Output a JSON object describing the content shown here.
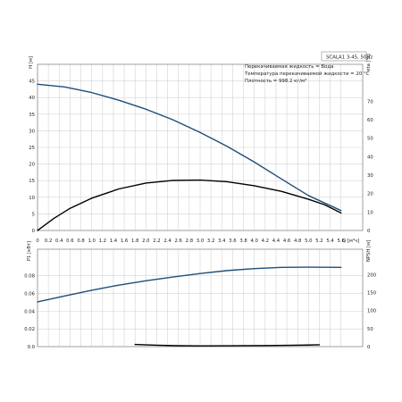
{
  "chart_data": [
    {
      "type": "line",
      "title": "SCALA1 3-45, 50Hz",
      "annotations": [
        "Перекачиваемая жидкость = Вода",
        "Температура перекачиваемой жидкости = 20 °C",
        "Плотность = 998.2 кг/м³"
      ],
      "xlabel": "Q [м³ч]",
      "xlim": [
        0,
        6.0
      ],
      "x_ticks": [
        "0",
        "0.2",
        "0.4",
        "0.6",
        "0.8",
        "1.0",
        "1.2",
        "1.4",
        "1.6",
        "1.8",
        "2.0",
        "2.2",
        "2.4",
        "2.6",
        "2.8",
        "3.0",
        "3.2",
        "3.4",
        "3.6",
        "3.8",
        "4.0",
        "4.2",
        "4.4",
        "4.6",
        "4.8",
        "5.0",
        "5.2",
        "5.4",
        "5.6"
      ],
      "ylabel_left": "H [м]",
      "ylim_left": [
        0,
        50
      ],
      "yticks_left": [
        "0",
        "5",
        "10",
        "15",
        "20",
        "25",
        "30",
        "35",
        "40",
        "45"
      ],
      "ylabel_right": "eta [%]",
      "ylim_right": [
        0,
        90
      ],
      "yticks_right": [
        "0",
        "10",
        "20",
        "30",
        "40",
        "50",
        "60",
        "70"
      ],
      "grid": true,
      "series": [
        {
          "axis": "left",
          "color": "#1f4e79",
          "x": [
            0,
            0.5,
            1.0,
            1.5,
            2.0,
            2.5,
            3.0,
            3.5,
            4.0,
            4.5,
            5.0,
            5.6
          ],
          "y": [
            44.0,
            43.2,
            41.5,
            39.2,
            36.5,
            33.3,
            29.5,
            25.3,
            20.6,
            15.5,
            10.5,
            6.0
          ]
        },
        {
          "axis": "right",
          "color": "#000000",
          "x": [
            0,
            0.3,
            0.6,
            1.0,
            1.5,
            2.0,
            2.5,
            3.0,
            3.5,
            4.0,
            4.5,
            5.0,
            5.3,
            5.6
          ],
          "y": [
            0,
            6.5,
            12.0,
            17.5,
            22.5,
            25.7,
            27.1,
            27.3,
            26.4,
            24.2,
            21.2,
            16.9,
            13.9,
            9.5
          ]
        }
      ]
    },
    {
      "type": "line",
      "xlim": [
        0,
        6.0
      ],
      "ylabel_left": "P1 [кВт]",
      "ylim_left": [
        0,
        0.11
      ],
      "yticks_left": [
        "0.0",
        "0.02",
        "0.04",
        "0.06",
        "0.08"
      ],
      "ylabel_right": "NPSH [м]",
      "ylim_right": [
        0,
        270
      ],
      "yticks_right": [
        "0",
        "50",
        "100",
        "150",
        "200"
      ],
      "grid": true,
      "series": [
        {
          "axis": "left",
          "color": "#1f4e79",
          "x": [
            0,
            0.5,
            1.0,
            1.5,
            2.0,
            2.5,
            3.0,
            3.5,
            4.0,
            4.5,
            5.0,
            5.6
          ],
          "y": [
            0.0505,
            0.0572,
            0.0637,
            0.0695,
            0.0744,
            0.0787,
            0.0826,
            0.0859,
            0.0881,
            0.0895,
            0.0898,
            0.0895
          ]
        },
        {
          "axis": "right",
          "color": "#000000",
          "x": [
            1.8,
            2.2,
            2.6,
            3.0,
            3.4,
            3.8,
            4.2,
            4.6,
            5.0,
            5.2
          ],
          "y": [
            6.0,
            4.0,
            2.5,
            2.0,
            2.2,
            2.6,
            3.0,
            3.6,
            4.3,
            5.0
          ]
        }
      ]
    }
  ]
}
